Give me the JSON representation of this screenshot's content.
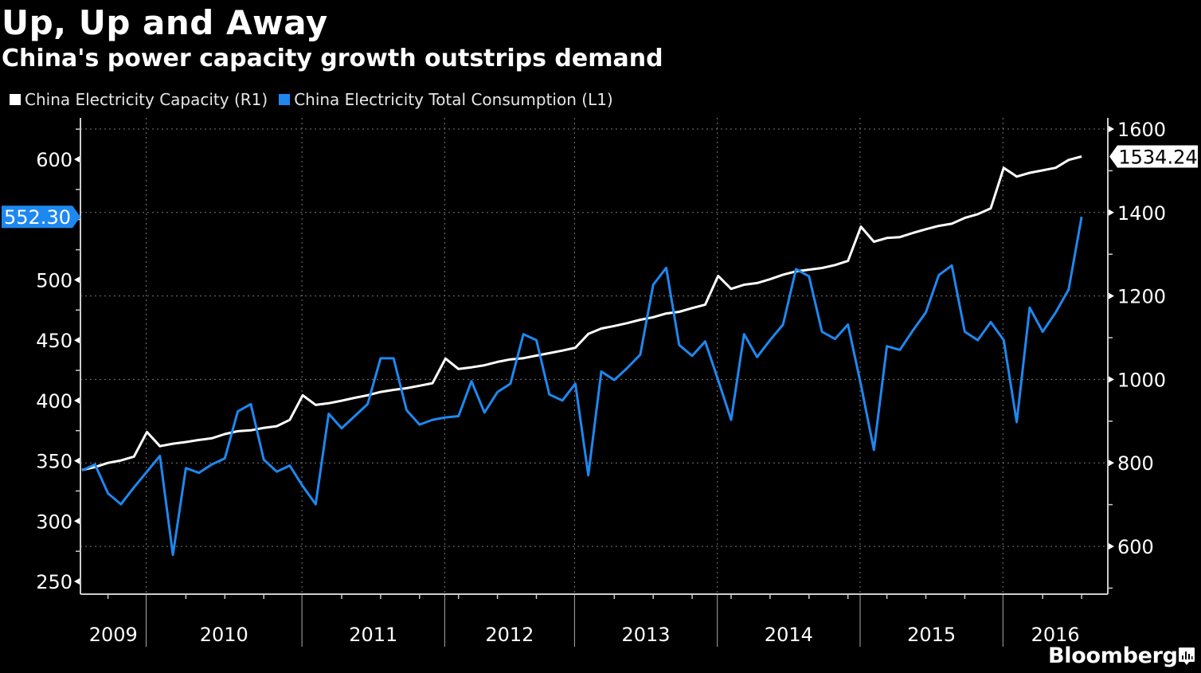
{
  "header": {
    "title": "Up, Up and Away",
    "subtitle": "China's power capacity growth outstrips demand"
  },
  "legend": [
    {
      "label": "China Electricity Capacity (R1)",
      "color": "#ffffff"
    },
    {
      "label": "China Electricity Total Consumption (L1)",
      "color": "#1e88f0"
    }
  ],
  "branding": {
    "name": "Bloomberg",
    "icon": "bloomberg-chart-icon"
  },
  "chart_data": {
    "type": "line",
    "title": "Up, Up and Away",
    "subtitle": "China's power capacity growth outstrips demand",
    "xlabel": "",
    "x_tick_labels": [
      "2009",
      "2010",
      "2011",
      "2012",
      "2013",
      "2014",
      "2015",
      "2016"
    ],
    "year_break_indices": [
      5,
      17,
      28,
      38,
      49,
      60,
      71
    ],
    "grid": true,
    "legend_position": "top-left",
    "left_axis": {
      "ylabel": "",
      "ylim": [
        240,
        640
      ],
      "ticks": [
        250,
        300,
        350,
        400,
        450,
        500,
        550,
        600
      ],
      "tick_labels": [
        "250",
        "300",
        "350",
        "",
        "",
        "",
        "",
        ""
      ],
      "labels": [
        {
          "value": 250,
          "text": "250"
        },
        {
          "value": 300,
          "text": "300"
        },
        {
          "value": 350,
          "text": "350"
        },
        {
          "value": 400,
          "text": "400"
        },
        {
          "value": 450,
          "text": "450"
        },
        {
          "value": 500,
          "text": "500"
        },
        {
          "value": 600,
          "text": "600"
        }
      ],
      "last_value_label": "552.30"
    },
    "right_axis": {
      "ylabel": "",
      "ylim": [
        490,
        1630
      ],
      "labels": [
        {
          "value": 600,
          "text": "600"
        },
        {
          "value": 800,
          "text": "800"
        },
        {
          "value": 1000,
          "text": "1000"
        },
        {
          "value": 1200,
          "text": "1200"
        },
        {
          "value": 1400,
          "text": "1400"
        },
        {
          "value": 1600,
          "text": "1600"
        }
      ],
      "last_value_label": "1534.24"
    },
    "series": [
      {
        "name": "China Electricity Capacity (R1)",
        "axis": "right",
        "color": "#ffffff",
        "values": [
          783,
          790,
          800,
          806,
          815,
          874,
          840,
          846,
          850,
          855,
          859,
          869,
          876,
          878,
          884,
          888,
          903,
          962,
          939,
          943,
          949,
          956,
          962,
          970,
          975,
          979,
          985,
          991,
          1050,
          1025,
          1029,
          1034,
          1042,
          1048,
          1051,
          1057,
          1063,
          1069,
          1076,
          1109,
          1122,
          1128,
          1135,
          1143,
          1149,
          1158,
          1162,
          1171,
          1179,
          1248,
          1217,
          1227,
          1231,
          1240,
          1251,
          1259,
          1263,
          1267,
          1274,
          1284,
          1366,
          1330,
          1339,
          1341,
          1351,
          1360,
          1368,
          1373,
          1387,
          1396,
          1410,
          1507,
          1486,
          1495,
          1501,
          1507,
          1526,
          1534.24
        ]
      },
      {
        "name": "China Electricity Total Consumption (L1)",
        "axis": "left",
        "color": "#1e88f0",
        "values": [
          342,
          347,
          323,
          314,
          328,
          341,
          354,
          272,
          344,
          340,
          347,
          352,
          391,
          397,
          351,
          341,
          346,
          329,
          314,
          389,
          377,
          387,
          397,
          435,
          435,
          392,
          380,
          384,
          386,
          387,
          416,
          390,
          407,
          414,
          455,
          450,
          405,
          400,
          414,
          338,
          424,
          417,
          427,
          438,
          496,
          510,
          446,
          437,
          449,
          417,
          384,
          455,
          436,
          450,
          463,
          509,
          503,
          457,
          451,
          463,
          413,
          359,
          445,
          442,
          458,
          473,
          504,
          512,
          457,
          450,
          465,
          450,
          382,
          477,
          457,
          473,
          492,
          552.3
        ]
      }
    ]
  }
}
